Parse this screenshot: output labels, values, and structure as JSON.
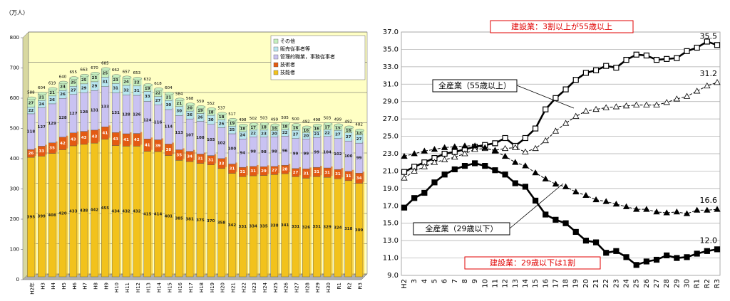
{
  "chart_data": [
    {
      "type": "bar",
      "stacked": true,
      "ylabel": "（万人）",
      "categories": [
        "H2年",
        "H3",
        "H4",
        "H5",
        "H6",
        "H7",
        "H8",
        "H9",
        "H10",
        "H11",
        "H12",
        "H13",
        "H14",
        "H15",
        "H16",
        "H17",
        "H18",
        "H19",
        "H20",
        "H21",
        "H22",
        "H23",
        "H24",
        "H25",
        "H26",
        "H27",
        "H28",
        "H29",
        "H30",
        "R1",
        "R2",
        "R3"
      ],
      "series": [
        {
          "name": "技能者",
          "color": "#f2c21c",
          "values": [
            395,
            399,
            408,
            420,
            433,
            438,
            442,
            455,
            434,
            432,
            432,
            415,
            414,
            401,
            385,
            381,
            375,
            370,
            358,
            342,
            331,
            334,
            335,
            338,
            341,
            331,
            326,
            331,
            329,
            324,
            318,
            309
          ]
        },
        {
          "name": "技術者",
          "color": "#e45a12",
          "values": [
            26,
            33,
            35,
            42,
            43,
            43,
            43,
            41,
            43,
            41,
            42,
            41,
            39,
            38,
            35,
            34,
            31,
            31,
            33,
            31,
            31,
            31,
            29,
            27,
            28,
            27,
            31,
            31,
            31,
            31,
            31,
            34
          ]
        },
        {
          "name": "管理的職業，事務従事者",
          "color": "#c9c2f2",
          "values": [
            118,
            127,
            129,
            128,
            127,
            128,
            131,
            133,
            131,
            128,
            126,
            124,
            116,
            114,
            113,
            107,
            108,
            103,
            102,
            100,
            94,
            98,
            98,
            98,
            96,
            99,
            99,
            99,
            104,
            102,
            100,
            99
          ]
        },
        {
          "name": "販売従事者等",
          "color": "#b8e6f0",
          "values": [
            22,
            24,
            26,
            26,
            27,
            29,
            29,
            31,
            31,
            32,
            31,
            33,
            27,
            30,
            30,
            26,
            26,
            30,
            26,
            25,
            24,
            22,
            23,
            20,
            22,
            27,
            20,
            21,
            22,
            27,
            27,
            27
          ]
        },
        {
          "name": "その他",
          "color": "#c6f0c0",
          "values": [
            27,
            21,
            21,
            24,
            25,
            25,
            25,
            25,
            23,
            24,
            22,
            19,
            22,
            21,
            21,
            20,
            19,
            18,
            18,
            19,
            18,
            17,
            18,
            16,
            18,
            16,
            16,
            16,
            17,
            15,
            16,
            13
          ]
        }
      ],
      "totals": [
        588,
        604,
        619,
        640,
        655,
        663,
        670,
        685,
        662,
        657,
        653,
        632,
        618,
        604,
        584,
        568,
        559,
        552,
        537,
        517,
        498,
        502,
        503,
        499,
        505,
        500,
        492,
        498,
        503,
        499,
        492,
        482
      ],
      "ylim": [
        0,
        800
      ],
      "yticks": [
        0,
        100,
        200,
        300,
        400,
        500,
        600,
        700,
        800
      ],
      "grid": true
    },
    {
      "type": "line",
      "categories": [
        "H2",
        "3",
        "4",
        "5",
        "6",
        "7",
        "8",
        "9",
        "10",
        "11",
        "12",
        "13",
        "14",
        "15",
        "16",
        "17",
        "18",
        "19",
        "20",
        "21",
        "22",
        "23",
        "24",
        "25",
        "26",
        "27",
        "28",
        "29",
        "30",
        "R1",
        "R2",
        "R3"
      ],
      "annotations": [
        "建設業：3割以上が55歳以上",
        "建設業：29歳以下は1割"
      ],
      "series": [
        {
          "color": "#000000",
          "marker": "square-open",
          "values": [
            20.9,
            21.5,
            22.0,
            22.5,
            23.0,
            23.2,
            23.5,
            23.8,
            24.0,
            24.2,
            24.8,
            23.9,
            24.8,
            25.9,
            28.1,
            29.4,
            30.4,
            31.5,
            32.3,
            32.6,
            33.1,
            32.9,
            33.8,
            34.4,
            34.3,
            33.8,
            33.9,
            34.0,
            34.8,
            35.2,
            35.9,
            35.5
          ],
          "value_labels": [
            null,
            null,
            null,
            null,
            null,
            null,
            null,
            null,
            null,
            null,
            null,
            null,
            null,
            null,
            null,
            null,
            null,
            null,
            null,
            null,
            null,
            null,
            null,
            null,
            null,
            null,
            null,
            null,
            null,
            null,
            null,
            "35.5"
          ]
        },
        {
          "name": "全産業（55歳以上）",
          "color": "#000000",
          "marker": "triangle-open",
          "dashed": true,
          "values": [
            20.2,
            21.0,
            21.5,
            22.0,
            22.3,
            22.6,
            23.0,
            23.5,
            23.6,
            23.4,
            23.6,
            23.7,
            23.2,
            23.6,
            24.5,
            25.6,
            26.5,
            27.3,
            27.9,
            28.1,
            28.3,
            28.4,
            28.5,
            28.6,
            28.6,
            28.6,
            28.9,
            29.3,
            29.6,
            30.2,
            30.8,
            31.2
          ],
          "value_labels": [
            null,
            null,
            null,
            null,
            null,
            null,
            null,
            null,
            null,
            null,
            null,
            null,
            null,
            null,
            null,
            null,
            null,
            null,
            null,
            null,
            null,
            null,
            null,
            null,
            null,
            null,
            null,
            null,
            null,
            null,
            null,
            "31.2"
          ]
        },
        {
          "name": "全産業（29歳以下）",
          "color": "#000000",
          "marker": "triangle",
          "dashed": true,
          "values": [
            22.7,
            23.0,
            23.3,
            23.5,
            23.7,
            23.8,
            23.9,
            23.9,
            23.7,
            23.3,
            22.7,
            22.0,
            21.6,
            20.8,
            20.1,
            19.5,
            19.2,
            18.6,
            18.2,
            17.7,
            17.5,
            17.2,
            16.9,
            16.6,
            16.6,
            16.3,
            16.2,
            16.3,
            16.1,
            16.5,
            16.5,
            16.6
          ],
          "value_labels": [
            null,
            null,
            null,
            null,
            null,
            null,
            null,
            null,
            null,
            null,
            null,
            null,
            null,
            null,
            null,
            null,
            null,
            null,
            null,
            null,
            null,
            null,
            null,
            null,
            null,
            null,
            null,
            null,
            null,
            null,
            null,
            "16.6"
          ]
        },
        {
          "color": "#000000",
          "marker": "square",
          "values": [
            16.8,
            17.9,
            18.5,
            19.7,
            20.6,
            21.2,
            21.6,
            21.9,
            21.6,
            21.1,
            20.6,
            19.6,
            19.2,
            17.6,
            16.0,
            15.4,
            15.0,
            14.0,
            13.0,
            12.8,
            11.6,
            11.8,
            11.1,
            10.2,
            10.6,
            10.8,
            11.3,
            11.0,
            11.1,
            11.5,
            11.8,
            12.0
          ],
          "value_labels": [
            null,
            null,
            null,
            null,
            null,
            null,
            null,
            null,
            null,
            null,
            null,
            null,
            null,
            null,
            null,
            null,
            null,
            null,
            null,
            null,
            null,
            null,
            null,
            null,
            null,
            null,
            null,
            null,
            null,
            null,
            null,
            "12.0"
          ]
        }
      ],
      "ylim": [
        9,
        37
      ],
      "yticks": [
        {
          "value": 9,
          "label": "9.0"
        },
        {
          "value": 11,
          "label": "11.0"
        },
        {
          "value": 13,
          "label": "13.0"
        },
        {
          "value": 15,
          "label": "15.0"
        },
        {
          "value": 17,
          "label": "17.0"
        },
        {
          "value": 19,
          "label": "19.0"
        },
        {
          "value": 21,
          "label": "21.0"
        },
        {
          "value": 23,
          "label": "23.0"
        },
        {
          "value": 25,
          "label": "25.0"
        },
        {
          "value": 27,
          "label": "27.0"
        },
        {
          "value": 29,
          "label": "29.0"
        },
        {
          "value": 31,
          "label": "31.0"
        },
        {
          "value": 33,
          "label": "33.0"
        },
        {
          "value": 35,
          "label": "35.0"
        },
        {
          "value": 37,
          "label": "37.0"
        }
      ],
      "grid": true
    }
  ]
}
